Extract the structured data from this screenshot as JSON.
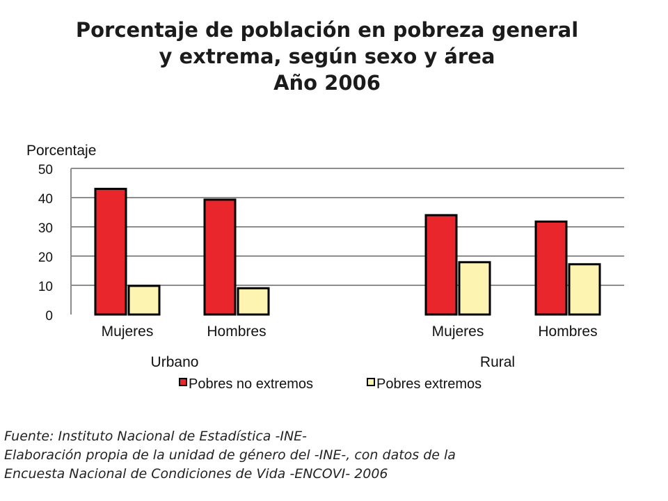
{
  "title_lines": [
    "Porcentaje de población en pobreza general",
    "y extrema, según sexo y área",
    "Año 2006"
  ],
  "chart_data": {
    "type": "bar",
    "ylabel": "Porcentaje",
    "ylim": [
      0,
      50
    ],
    "yticks": [
      0,
      10,
      20,
      30,
      40,
      50
    ],
    "grid": true,
    "categories": [
      "Mujeres",
      "Hombres",
      "Mujeres",
      "Hombres"
    ],
    "groups": [
      {
        "label": "Urbano",
        "categories": [
          0,
          1
        ]
      },
      {
        "label": "Rural",
        "categories": [
          2,
          3
        ]
      }
    ],
    "series": [
      {
        "name": "Pobres no extremos",
        "color": "#e8262b",
        "values": [
          43,
          39.3,
          34,
          31.8
        ]
      },
      {
        "name": "Pobres extremos",
        "color": "#fcf4b0",
        "values": [
          9.8,
          9,
          17.9,
          17.2
        ]
      }
    ],
    "legend_position": "bottom"
  },
  "source_lines": [
    "Fuente: Instituto Nacional de Estadística -INE-",
    "Elaboración propia de la unidad de género del -INE-, con datos de la",
    "Encuesta Nacional de Condiciones de Vida -ENCOVI- 2006"
  ]
}
